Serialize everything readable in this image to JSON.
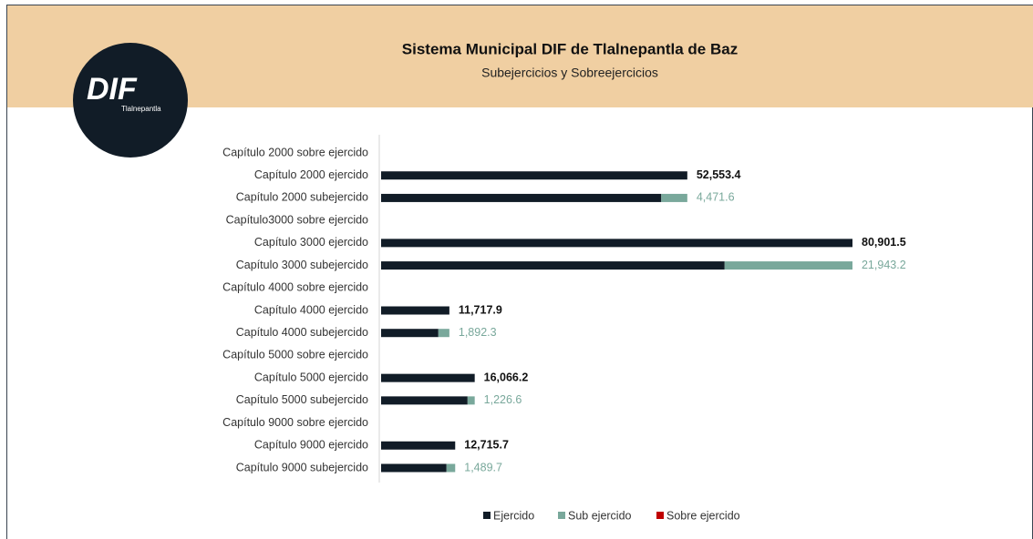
{
  "chart_data": {
    "type": "stacked-bar-horizontal",
    "title": "Sistema Municipal DIF de Tlalnepantla de Baz",
    "subtitle": "Subejercicios y Sobreejercicios",
    "logo": {
      "text": "DIF",
      "subtext": "Tlalnepantla"
    },
    "categories": [
      "Capítulo 2000 sobre ejercido",
      "Capítulo 2000 ejercido",
      "Capítulo 2000 subejercido",
      "Capítulo3000 sobre ejercido",
      "Capítulo 3000 ejercido",
      "Capítulo 3000 subejercido",
      "Capítulo 4000 sobre ejercido",
      "Capítulo 4000 ejercido",
      "Capítulo 4000 subejercido",
      "Capítulo 5000 sobre ejercido",
      "Capítulo 5000 ejercido",
      "Capítulo 5000 subejercido",
      "Capítulo 9000 sobre ejercido",
      "Capítulo 9000 ejercido",
      "Capítulo 9000 subejercido"
    ],
    "series": [
      {
        "name": "Ejercido",
        "color": "#111c27",
        "values": [
          null,
          52553.4,
          48082,
          null,
          80901.5,
          58958,
          null,
          11717.9,
          9826,
          null,
          16066.2,
          14840,
          null,
          12715.7,
          11226
        ],
        "value_labels": [
          null,
          "52,553.4",
          null,
          null,
          "80,901.5",
          null,
          null,
          "11,717.9",
          null,
          null,
          "16,066.2",
          null,
          null,
          "12,715.7",
          null
        ]
      },
      {
        "name": "Sub ejercido",
        "color": "#79a89b",
        "values": [
          null,
          null,
          4471.6,
          null,
          null,
          21943.2,
          null,
          null,
          1892.3,
          null,
          null,
          1226.6,
          null,
          null,
          1489.7
        ],
        "value_labels": [
          null,
          null,
          "4,471.6",
          null,
          null,
          "21,943.2",
          null,
          null,
          "1,892.3",
          null,
          null,
          "1,226.6",
          null,
          null,
          "1,489.7"
        ]
      },
      {
        "name": "Sobre ejercido",
        "color": "#c00000",
        "values": [
          null,
          null,
          null,
          null,
          null,
          null,
          null,
          null,
          null,
          null,
          null,
          null,
          null,
          null,
          null
        ]
      }
    ],
    "legend": "bottom"
  }
}
